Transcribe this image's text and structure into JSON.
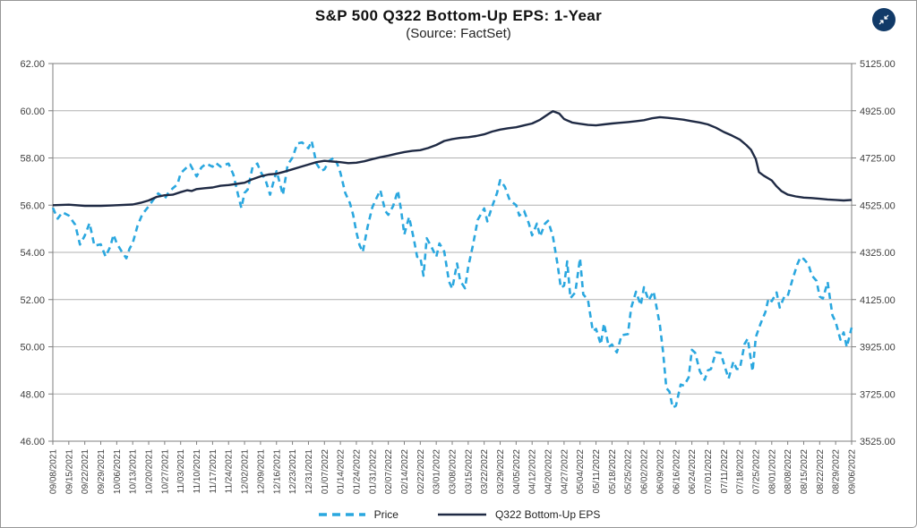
{
  "page": {
    "title": "S&P 500 Q322 Bottom-Up EPS: 1-Year",
    "subtitle": "(Source: FactSet)"
  },
  "controls": {
    "collapse_button_color": "#113A68",
    "collapse_icon": "collapse-arrows-icon"
  },
  "legend": [
    {
      "label": "Price",
      "style": "dashed",
      "color": "#2AA7DF"
    },
    {
      "label": "Q322 Bottom-Up EPS",
      "style": "solid",
      "color": "#1F2A44"
    }
  ],
  "chart_data": {
    "type": "line",
    "title": "S&P 500 Q322 Bottom-Up EPS: 1-Year",
    "subtitle": "(Source: FactSet)",
    "grid": true,
    "legend_position": "bottom",
    "x_range": [
      0,
      50
    ],
    "left_axis": {
      "min": 46,
      "max": 62,
      "tick_step": 2,
      "tick_labels": [
        "62.00",
        "60.00",
        "58.00",
        "56.00",
        "54.00",
        "52.00",
        "50.00",
        "48.00",
        "46.00"
      ]
    },
    "right_axis": {
      "min": 3525,
      "max": 5125,
      "tick_step": 200,
      "tick_labels": [
        "5125.00",
        "4925.00",
        "4725.00",
        "4525.00",
        "4325.00",
        "4125.00",
        "3925.00",
        "3725.00",
        "3525.00"
      ]
    },
    "x_labels": [
      "09/08/2021",
      "09/15/2021",
      "09/22/2021",
      "09/29/2021",
      "10/06/2021",
      "10/13/2021",
      "10/20/2021",
      "10/27/2021",
      "11/03/2021",
      "11/10/2021",
      "11/17/2021",
      "11/24/2021",
      "12/02/2021",
      "12/09/2021",
      "12/16/2021",
      "12/23/2021",
      "12/31/2021",
      "01/07/2022",
      "01/14/2022",
      "01/24/2022",
      "01/31/2022",
      "02/07/2022",
      "02/14/2022",
      "02/22/2022",
      "03/01/2022",
      "03/08/2022",
      "03/15/2022",
      "03/22/2022",
      "03/29/2022",
      "04/05/2022",
      "04/12/2022",
      "04/20/2022",
      "04/27/2022",
      "05/04/2022",
      "05/11/2022",
      "05/18/2022",
      "05/25/2022",
      "06/02/2022",
      "06/09/2022",
      "06/16/2022",
      "06/24/2022",
      "07/01/2022",
      "07/11/2022",
      "07/18/2022",
      "07/25/2022",
      "08/01/2022",
      "08/08/2022",
      "08/15/2022",
      "08/22/2022",
      "08/29/2022",
      "09/06/2022"
    ],
    "series": [
      {
        "name": "Price",
        "axis": "right",
        "color": "#2AA7DF",
        "dash": true,
        "width": 2.6,
        "points": [
          [
            0,
            4514
          ],
          [
            0.3,
            4468
          ],
          [
            0.6,
            4495
          ],
          [
            1,
            4481
          ],
          [
            1.4,
            4442
          ],
          [
            1.7,
            4358
          ],
          [
            2,
            4396
          ],
          [
            2.3,
            4449
          ],
          [
            2.6,
            4353
          ],
          [
            3,
            4359
          ],
          [
            3.3,
            4307
          ],
          [
            3.6,
            4350
          ],
          [
            3.8,
            4400
          ],
          [
            4,
            4363
          ],
          [
            4.3,
            4330
          ],
          [
            4.6,
            4300
          ],
          [
            4.8,
            4340
          ],
          [
            5,
            4364
          ],
          [
            5.3,
            4438
          ],
          [
            5.6,
            4486
          ],
          [
            6,
            4520
          ],
          [
            6.3,
            4549
          ],
          [
            6.6,
            4575
          ],
          [
            7,
            4552
          ],
          [
            7.2,
            4574
          ],
          [
            7.5,
            4596
          ],
          [
            7.8,
            4613
          ],
          [
            8,
            4660
          ],
          [
            8.3,
            4680
          ],
          [
            8.6,
            4697
          ],
          [
            9,
            4647
          ],
          [
            9.3,
            4685
          ],
          [
            9.6,
            4701
          ],
          [
            10,
            4688
          ],
          [
            10.2,
            4704
          ],
          [
            10.5,
            4688
          ],
          [
            10.8,
            4697
          ],
          [
            11,
            4701
          ],
          [
            11.3,
            4655
          ],
          [
            11.6,
            4568
          ],
          [
            11.8,
            4513
          ],
          [
            12,
            4577
          ],
          [
            12.2,
            4591
          ],
          [
            12.5,
            4686
          ],
          [
            12.8,
            4701
          ],
          [
            13,
            4667
          ],
          [
            13.3,
            4634
          ],
          [
            13.6,
            4569
          ],
          [
            13.8,
            4621
          ],
          [
            14,
            4669
          ],
          [
            14.2,
            4621
          ],
          [
            14.4,
            4568
          ],
          [
            14.7,
            4696
          ],
          [
            15,
            4726
          ],
          [
            15.3,
            4786
          ],
          [
            15.6,
            4791
          ],
          [
            15.8,
            4779
          ],
          [
            16,
            4766
          ],
          [
            16.2,
            4797
          ],
          [
            16.5,
            4701
          ],
          [
            16.8,
            4670
          ],
          [
            17,
            4677
          ],
          [
            17.3,
            4713
          ],
          [
            17.6,
            4726
          ],
          [
            17.8,
            4700
          ],
          [
            18,
            4663
          ],
          [
            18.3,
            4577
          ],
          [
            18.6,
            4533
          ],
          [
            18.8,
            4483
          ],
          [
            19,
            4410
          ],
          [
            19.2,
            4356
          ],
          [
            19.4,
            4326
          ],
          [
            19.7,
            4432
          ],
          [
            20,
            4516
          ],
          [
            20.2,
            4546
          ],
          [
            20.5,
            4589
          ],
          [
            20.8,
            4501
          ],
          [
            21,
            4484
          ],
          [
            21.3,
            4521
          ],
          [
            21.6,
            4587
          ],
          [
            21.8,
            4504
          ],
          [
            22,
            4401
          ],
          [
            22.3,
            4475
          ],
          [
            22.6,
            4380
          ],
          [
            22.8,
            4306
          ],
          [
            23,
            4305
          ],
          [
            23.2,
            4226
          ],
          [
            23.4,
            4385
          ],
          [
            23.7,
            4348
          ],
          [
            24,
            4306
          ],
          [
            24.2,
            4363
          ],
          [
            24.5,
            4328
          ],
          [
            24.8,
            4201
          ],
          [
            25,
            4171
          ],
          [
            25.3,
            4278
          ],
          [
            25.5,
            4204
          ],
          [
            25.8,
            4173
          ],
          [
            26,
            4262
          ],
          [
            26.3,
            4357
          ],
          [
            26.6,
            4463
          ],
          [
            27,
            4511
          ],
          [
            27.2,
            4456
          ],
          [
            27.5,
            4520
          ],
          [
            27.8,
            4576
          ],
          [
            28,
            4631
          ],
          [
            28.3,
            4602
          ],
          [
            28.6,
            4546
          ],
          [
            29,
            4525
          ],
          [
            29.2,
            4481
          ],
          [
            29.5,
            4500
          ],
          [
            29.8,
            4447
          ],
          [
            30,
            4397
          ],
          [
            30.3,
            4447
          ],
          [
            30.5,
            4392
          ],
          [
            30.8,
            4446
          ],
          [
            31,
            4459
          ],
          [
            31.3,
            4393
          ],
          [
            31.6,
            4272
          ],
          [
            31.8,
            4175
          ],
          [
            32,
            4184
          ],
          [
            32.2,
            4287
          ],
          [
            32.4,
            4131
          ],
          [
            32.7,
            4155
          ],
          [
            33,
            4300
          ],
          [
            33.2,
            4147
          ],
          [
            33.5,
            4123
          ],
          [
            33.8,
            3991
          ],
          [
            34,
            4001
          ],
          [
            34.3,
            3935
          ],
          [
            34.5,
            4024
          ],
          [
            34.8,
            3924
          ],
          [
            35,
            3935
          ],
          [
            35.3,
            3901
          ],
          [
            35.6,
            3974
          ],
          [
            36,
            3979
          ],
          [
            36.2,
            4090
          ],
          [
            36.5,
            4158
          ],
          [
            36.8,
            4101
          ],
          [
            37,
            4177
          ],
          [
            37.3,
            4121
          ],
          [
            37.6,
            4160
          ],
          [
            38,
            4017
          ],
          [
            38.2,
            3901
          ],
          [
            38.4,
            3750
          ],
          [
            38.6,
            3735
          ],
          [
            38.8,
            3667
          ],
          [
            39,
            3675
          ],
          [
            39.3,
            3765
          ],
          [
            39.5,
            3760
          ],
          [
            39.8,
            3795
          ],
          [
            40,
            3912
          ],
          [
            40.2,
            3900
          ],
          [
            40.5,
            3822
          ],
          [
            40.8,
            3785
          ],
          [
            41,
            3825
          ],
          [
            41.2,
            3831
          ],
          [
            41.5,
            3902
          ],
          [
            41.8,
            3899
          ],
          [
            42,
            3854
          ],
          [
            42.3,
            3790
          ],
          [
            42.6,
            3863
          ],
          [
            42.8,
            3831
          ],
          [
            43,
            3831
          ],
          [
            43.3,
            3937
          ],
          [
            43.5,
            3960
          ],
          [
            43.8,
            3821
          ],
          [
            44,
            3966
          ],
          [
            44.3,
            4023
          ],
          [
            44.6,
            4072
          ],
          [
            44.8,
            4130
          ],
          [
            45,
            4118
          ],
          [
            45.3,
            4155
          ],
          [
            45.5,
            4091
          ],
          [
            45.8,
            4140
          ],
          [
            46,
            4140
          ],
          [
            46.3,
            4210
          ],
          [
            46.6,
            4274
          ],
          [
            46.8,
            4305
          ],
          [
            47,
            4297
          ],
          [
            47.3,
            4274
          ],
          [
            47.5,
            4228
          ],
          [
            47.8,
            4204
          ],
          [
            48,
            4138
          ],
          [
            48.2,
            4129
          ],
          [
            48.5,
            4199
          ],
          [
            48.8,
            4058
          ],
          [
            49,
            4030
          ],
          [
            49.3,
            3955
          ],
          [
            49.5,
            3986
          ],
          [
            49.7,
            3924
          ],
          [
            50,
            4006
          ]
        ]
      },
      {
        "name": "Q322 Bottom-Up EPS",
        "axis": "left",
        "color": "#1F2A44",
        "dash": false,
        "width": 2.4,
        "points": [
          [
            0,
            56.0
          ],
          [
            1,
            56.02
          ],
          [
            2,
            55.97
          ],
          [
            3,
            55.97
          ],
          [
            4,
            56.0
          ],
          [
            5,
            56.03
          ],
          [
            5.5,
            56.1
          ],
          [
            6,
            56.2
          ],
          [
            6.5,
            56.35
          ],
          [
            7,
            56.42
          ],
          [
            7.5,
            56.44
          ],
          [
            8,
            56.55
          ],
          [
            8.4,
            56.63
          ],
          [
            8.7,
            56.6
          ],
          [
            9,
            56.68
          ],
          [
            9.5,
            56.72
          ],
          [
            10,
            56.75
          ],
          [
            10.5,
            56.82
          ],
          [
            11,
            56.85
          ],
          [
            11.5,
            56.9
          ],
          [
            12,
            56.95
          ],
          [
            12.5,
            57.1
          ],
          [
            13,
            57.22
          ],
          [
            13.5,
            57.3
          ],
          [
            14,
            57.33
          ],
          [
            14.5,
            57.42
          ],
          [
            15,
            57.52
          ],
          [
            15.5,
            57.62
          ],
          [
            16,
            57.72
          ],
          [
            16.5,
            57.82
          ],
          [
            17,
            57.88
          ],
          [
            17.5,
            57.85
          ],
          [
            18,
            57.82
          ],
          [
            18.5,
            57.78
          ],
          [
            19,
            57.8
          ],
          [
            19.5,
            57.86
          ],
          [
            20,
            57.95
          ],
          [
            20.5,
            58.03
          ],
          [
            21,
            58.1
          ],
          [
            21.5,
            58.18
          ],
          [
            22,
            58.25
          ],
          [
            22.5,
            58.3
          ],
          [
            23,
            58.33
          ],
          [
            23.5,
            58.42
          ],
          [
            24,
            58.55
          ],
          [
            24.5,
            58.72
          ],
          [
            25,
            58.8
          ],
          [
            25.5,
            58.85
          ],
          [
            26,
            58.88
          ],
          [
            26.5,
            58.93
          ],
          [
            27,
            59.0
          ],
          [
            27.5,
            59.12
          ],
          [
            28,
            59.2
          ],
          [
            28.5,
            59.26
          ],
          [
            29,
            59.3
          ],
          [
            29.5,
            59.38
          ],
          [
            30,
            59.46
          ],
          [
            30.5,
            59.62
          ],
          [
            31,
            59.85
          ],
          [
            31.3,
            59.98
          ],
          [
            31.7,
            59.88
          ],
          [
            32,
            59.65
          ],
          [
            32.5,
            59.5
          ],
          [
            33,
            59.45
          ],
          [
            33.5,
            59.4
          ],
          [
            34,
            59.38
          ],
          [
            34.5,
            59.42
          ],
          [
            35,
            59.46
          ],
          [
            35.5,
            59.49
          ],
          [
            36,
            59.52
          ],
          [
            36.5,
            59.56
          ],
          [
            37,
            59.6
          ],
          [
            37.5,
            59.68
          ],
          [
            38,
            59.73
          ],
          [
            38.5,
            59.7
          ],
          [
            39,
            59.66
          ],
          [
            39.5,
            59.62
          ],
          [
            40,
            59.56
          ],
          [
            40.5,
            59.5
          ],
          [
            41,
            59.42
          ],
          [
            41.5,
            59.28
          ],
          [
            42,
            59.1
          ],
          [
            42.5,
            58.95
          ],
          [
            43,
            58.78
          ],
          [
            43.4,
            58.55
          ],
          [
            43.7,
            58.35
          ],
          [
            44,
            57.95
          ],
          [
            44.2,
            57.4
          ],
          [
            44.5,
            57.25
          ],
          [
            45,
            57.05
          ],
          [
            45.3,
            56.8
          ],
          [
            45.6,
            56.6
          ],
          [
            46,
            56.45
          ],
          [
            46.5,
            56.37
          ],
          [
            47,
            56.32
          ],
          [
            47.5,
            56.3
          ],
          [
            48,
            56.27
          ],
          [
            48.5,
            56.24
          ],
          [
            49,
            56.22
          ],
          [
            49.5,
            56.2
          ],
          [
            50,
            56.22
          ]
        ]
      }
    ]
  }
}
